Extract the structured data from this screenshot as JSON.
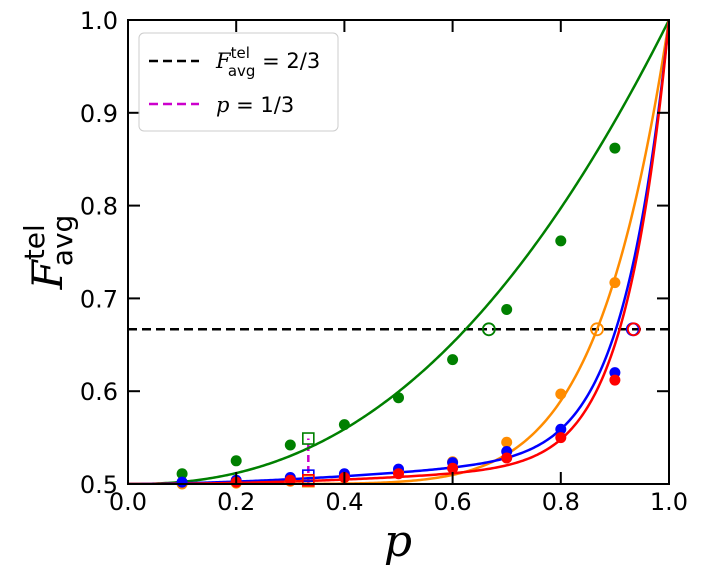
{
  "chart_data": {
    "type": "line",
    "xlabel": "p",
    "ylabel": {
      "main": "F",
      "sup": "tel",
      "sub": "avg"
    },
    "xlim": [
      0.0,
      1.0
    ],
    "ylim": [
      0.5,
      1.0
    ],
    "x_ticks": [
      "0.0",
      "0.2",
      "0.4",
      "0.6",
      "0.8",
      "1.0"
    ],
    "y_ticks": [
      "0.5",
      "0.6",
      "0.7",
      "0.8",
      "0.9",
      "1.0"
    ],
    "x_tick_values": [
      0.0,
      0.2,
      0.4,
      0.6,
      0.8,
      1.0
    ],
    "y_tick_values": [
      0.5,
      0.6,
      0.7,
      0.8,
      0.9,
      1.0
    ],
    "legend": {
      "placement": "top-left",
      "entries": [
        {
          "id": "threshold",
          "main": "F",
          "sup": "tel",
          "sub": "avg",
          "rest": " = 2/3",
          "color": "#000000",
          "style": "dashed"
        },
        {
          "id": "p-third",
          "main": "p",
          "rest": " = 1/3",
          "color": "#cc00cc",
          "style": "dashed"
        }
      ]
    },
    "reference_lines": [
      {
        "type": "horizontal",
        "y": 0.6667,
        "color": "#000000",
        "style": "dashed"
      },
      {
        "type": "vertical",
        "x": 0.3333,
        "y_range": [
          0.5,
          0.549
        ],
        "color": "#cc00cc",
        "style": "dashed"
      }
    ],
    "series": [
      {
        "color": "#008000",
        "x": [
          0.1,
          0.2,
          0.3,
          0.4,
          0.5,
          0.6,
          0.7,
          0.8,
          0.9
        ],
        "y": [
          0.511,
          0.525,
          0.542,
          0.564,
          0.593,
          0.634,
          0.688,
          0.762,
          0.862
        ],
        "curve": {
          "type": "power",
          "a": 0.5,
          "b": 0.5,
          "n": 2.33
        },
        "crossing": {
          "x": 0.667,
          "y": 0.6667
        },
        "p_third_marker": {
          "x": 0.3333,
          "y": 0.549
        }
      },
      {
        "color": "#ff8c00",
        "x": [
          0.1,
          0.2,
          0.3,
          0.4,
          0.5,
          0.6,
          0.7,
          0.8,
          0.9
        ],
        "y": [
          0.5,
          0.501,
          0.503,
          0.507,
          0.513,
          0.524,
          0.545,
          0.597,
          0.717
        ],
        "curve": {
          "type": "power",
          "a": 0.5,
          "b": 0.5,
          "n": 7.7
        },
        "crossing": {
          "x": 0.867,
          "y": 0.6667
        },
        "p_third_marker": {
          "x": 0.3333,
          "y": 0.503
        }
      },
      {
        "color": "#0000ff",
        "x": [
          0.1,
          0.2,
          0.3,
          0.4,
          0.5,
          0.6,
          0.7,
          0.8,
          0.9
        ],
        "y": [
          0.502,
          0.504,
          0.507,
          0.511,
          0.516,
          0.523,
          0.535,
          0.559,
          0.62
        ],
        "curve": {
          "type": "power2",
          "a": 0.5,
          "b1": 0.04,
          "n1": 1.7,
          "b2": 0.46,
          "n2": 12
        },
        "crossing": {
          "x": 0.933,
          "y": 0.6667
        },
        "p_third_marker": {
          "x": 0.3333,
          "y": 0.509
        }
      },
      {
        "color": "#ff0000",
        "x": [
          0.2,
          0.3,
          0.4,
          0.5,
          0.6,
          0.7,
          0.8,
          0.9
        ],
        "y": [
          0.502,
          0.504,
          0.507,
          0.511,
          0.517,
          0.528,
          0.55,
          0.612
        ],
        "curve": {
          "type": "power2",
          "a": 0.5,
          "b1": 0.03,
          "n1": 2.0,
          "b2": 0.47,
          "n2": 12.5
        },
        "crossing": {
          "x": 0.935,
          "y": 0.6667
        },
        "p_third_marker": {
          "x": 0.3333,
          "y": 0.504
        }
      }
    ]
  }
}
